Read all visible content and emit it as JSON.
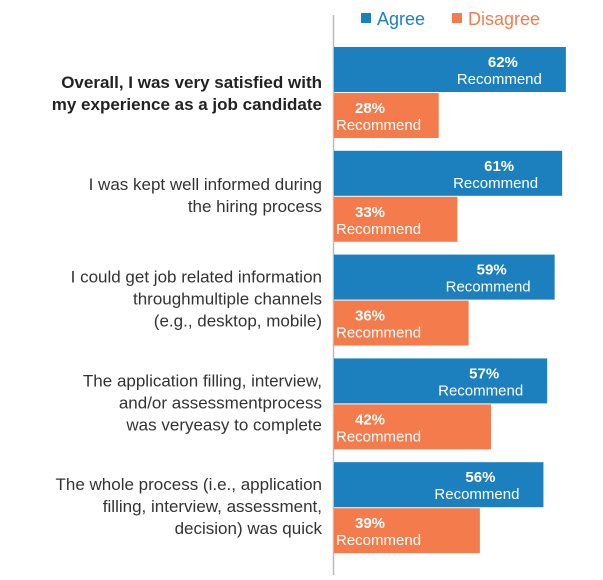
{
  "chart_data": {
    "type": "bar",
    "orientation": "horizontal",
    "title": "",
    "xlabel": "",
    "ylabel": "",
    "xlim": [
      0,
      100
    ],
    "grid": false,
    "legend_position": "top",
    "value_suffix": "%",
    "value_sublabel": "Recommend",
    "categories": [
      [
        "Overall, I was very satisfied with",
        "my experience as a job candidate"
      ],
      [
        "I was kept well informed during",
        "the hiring process"
      ],
      [
        "I could get job related information",
        "throughmultiple channels",
        "(e.g., desktop, mobile)"
      ],
      [
        "The application filling, interview,",
        "and/or assessmentprocess",
        "was veryeasy to complete"
      ],
      [
        "The whole process (i.e., application",
        "filling, interview, assessment,",
        "decision) was quick"
      ]
    ],
    "emphasized_category_index": 0,
    "series": [
      {
        "name": "Agree",
        "color": "#1b80bd",
        "values": [
          62,
          61,
          59,
          57,
          56
        ]
      },
      {
        "name": "Disagree",
        "color": "#f47c4c",
        "values": [
          28,
          33,
          36,
          42,
          39
        ]
      }
    ]
  },
  "colors": {
    "axis": "#bbbbbb",
    "label_text": "#333333",
    "value_text": "#ffffff"
  }
}
